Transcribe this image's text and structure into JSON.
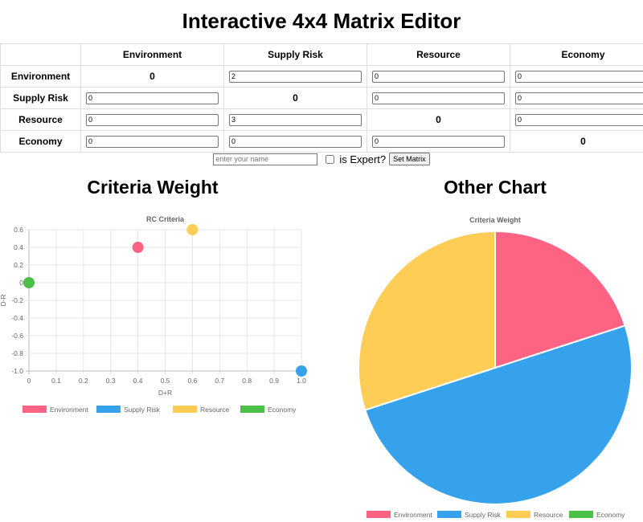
{
  "page": {
    "title": "Interactive 4x4 Matrix Editor"
  },
  "matrix": {
    "headers": [
      "Environment",
      "Supply Risk",
      "Resource",
      "Economy"
    ],
    "rows": [
      [
        "0",
        "2",
        "0",
        "0"
      ],
      [
        "0",
        "0",
        "0",
        "0"
      ],
      [
        "0",
        "3",
        "0",
        "0"
      ],
      [
        "0",
        "0",
        "0",
        "0"
      ]
    ]
  },
  "controls": {
    "name_placeholder": "enter your name",
    "expert_label": "is Expert?",
    "set_button_label": "Set Matrix"
  },
  "sections": {
    "left_title": "Criteria Weight",
    "right_title": "Other Chart"
  },
  "colors": {
    "environment": "#ff6384",
    "supply_risk": "#36a2eb",
    "resource": "#ffcd56",
    "economy": "#4bc048"
  },
  "chart_data": [
    {
      "type": "scatter",
      "title": "RC Criteria",
      "xlabel": "D+R",
      "ylabel": "D-R",
      "xlim": [
        0,
        1.0
      ],
      "ylim": [
        -1.0,
        0.6
      ],
      "xticks": [
        "0",
        "0.1",
        "0.2",
        "0.3",
        "0.4",
        "0.5",
        "0.6",
        "0.7",
        "0.8",
        "0.9",
        "1.0"
      ],
      "yticks": [
        "0.6",
        "0.4",
        "0.2",
        "0",
        "-0.2",
        "-0.4",
        "-0.6",
        "-0.8",
        "-1.0"
      ],
      "grid": true,
      "legend": "bottom",
      "series": [
        {
          "name": "Environment",
          "x": 0.4,
          "y": 0.4,
          "color": "#ff6384"
        },
        {
          "name": "Supply Risk",
          "x": 1.0,
          "y": -1.0,
          "color": "#36a2eb"
        },
        {
          "name": "Resource",
          "x": 0.6,
          "y": 0.6,
          "color": "#ffcd56"
        },
        {
          "name": "Economy",
          "x": 0.0,
          "y": 0.0,
          "color": "#4bc048"
        }
      ]
    },
    {
      "type": "pie",
      "title": "Criteria Weight",
      "legend": "bottom",
      "labels": [
        "Environment",
        "Supply Risk",
        "Resource",
        "Economy"
      ],
      "values": [
        20,
        50,
        30,
        0
      ],
      "colors": [
        "#ff6384",
        "#36a2eb",
        "#ffcd56",
        "#4bc048"
      ]
    }
  ]
}
